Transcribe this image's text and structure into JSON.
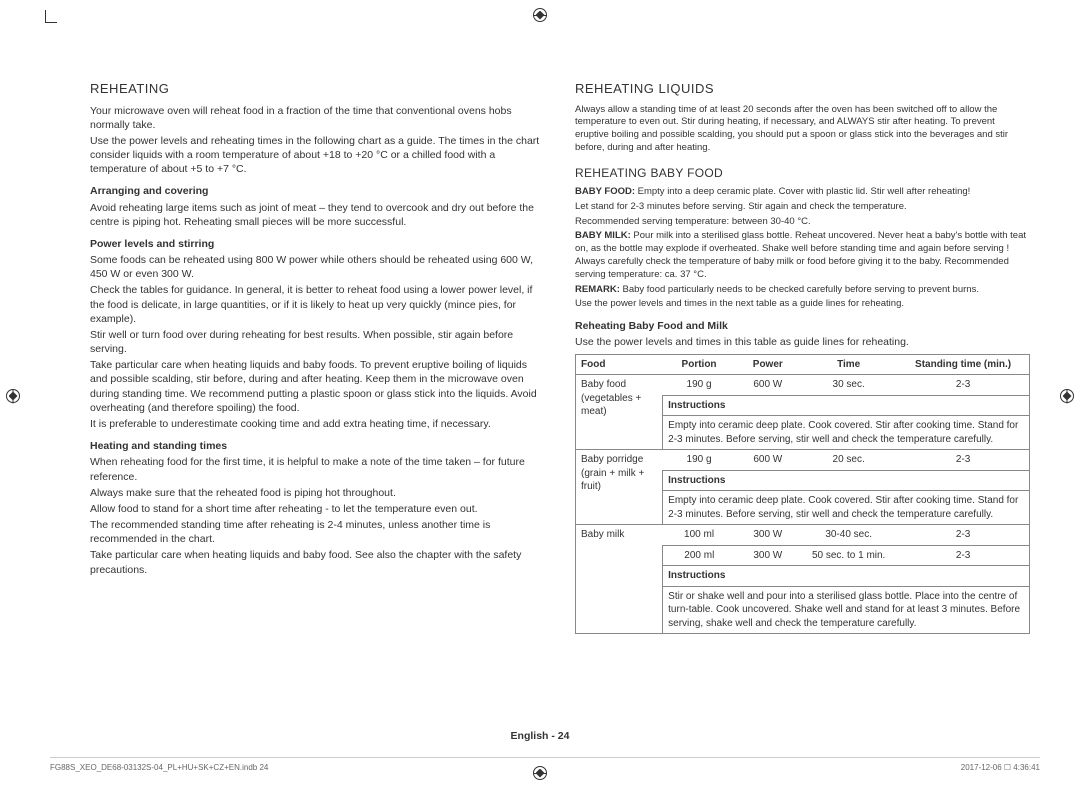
{
  "left": {
    "title": "Reheating",
    "intro1": "Your microwave oven will reheat food in a fraction of the time that conventional ovens hobs normally take.",
    "intro2": "Use the power levels and reheating times in the following chart as a guide. The times in the chart consider liquids with a room temperature of about +18 to +20 °C or a chilled food with a temperature of about +5 to +7 °C.",
    "s1h": "Arranging and covering",
    "s1p": "Avoid reheating large items such as joint of meat – they tend to overcook and dry out before the centre is piping hot. Reheating small pieces will be more successful.",
    "s2h": "Power levels and stirring",
    "s2p1": "Some foods can be reheated using 800 W power while others should be reheated using 600 W, 450 W or even 300 W.",
    "s2p2": "Check the tables for guidance. In general, it is better to reheat food using a lower power level, if the food is delicate, in large quantities, or if it is likely to heat up very quickly (mince pies, for example).",
    "s2p3": "Stir well or turn food over during reheating for best results. When possible, stir again before serving.",
    "s2p4": "Take particular care when heating liquids and baby foods. To prevent eruptive boiling of liquids and possible scalding, stir before, during and after heating. Keep them in the microwave oven during standing time. We recommend putting a plastic spoon or glass stick into the liquids. Avoid overheating (and therefore spoiling) the food.",
    "s2p5": "It is preferable to underestimate cooking time and add extra heating time, if necessary.",
    "s3h": "Heating and standing times",
    "s3p1": "When reheating food for the first time, it is helpful to make a note of the time taken – for future reference.",
    "s3p2": "Always make sure that the reheated food is piping hot throughout.",
    "s3p3": "Allow food to stand for a short time after reheating - to let the temperature even out.",
    "s3p4": "The recommended standing time after reheating is 2-4 minutes, unless another time is recommended in the chart.",
    "s3p5": "Take particular care when heating liquids and baby food. See also the chapter with the safety precautions."
  },
  "right": {
    "title1": "Reheating Liquids",
    "p1": "Always allow a standing time of at least 20 seconds after the oven has been switched off to allow the temperature to even out. Stir during heating, if necessary, and ALWAYS stir after heating. To prevent eruptive boiling and possible scalding, you should put a spoon or glass stick into the beverages and stir before, during and after heating.",
    "title2": "Reheating Baby Food",
    "bfLabel": "BABY FOOD:",
    "bf1": " Empty into a deep ceramic plate. Cover with plastic lid. Stir well after reheating!",
    "bf2": "Let stand for 2-3 minutes before serving. Stir again and check the temperature.",
    "bf3": "Recommended serving temperature: between 30-40 °C.",
    "bmLabel": "BABY MILK:",
    "bm1": " Pour milk into a sterilised glass bottle. Reheat uncovered. Never heat a baby's bottle with teat on, as the bottle may explode if overheated. Shake well before standing time and again before serving ! Always carefully check the temperature of baby milk or food before giving it to the baby. Recommended serving temperature: ca. 37 °C.",
    "remLabel": "REMARK:",
    "rem1": " Baby food particularly needs to be checked carefully before serving to prevent burns.",
    "rem2": "Use the power levels and times in the next table as a guide lines for reheating.",
    "tableTitle": "Reheating Baby Food and Milk",
    "tableIntro": "Use the power levels and times in this table as guide lines for reheating.",
    "headers": {
      "food": "Food",
      "portion": "Portion",
      "power": "Power",
      "time": "Time",
      "standing": "Standing time (min.)"
    },
    "instrLabel": "Instructions",
    "rows": [
      {
        "food": "Baby food (vegetables + meat)",
        "portion": "190 g",
        "power": "600 W",
        "time": "30 sec.",
        "standing": "2-3",
        "instr": "Empty into ceramic deep plate. Cook covered. Stir after cooking time. Stand for 2-3 minutes. Before serving, stir well and check the temperature carefully."
      },
      {
        "food": "Baby porridge (grain + milk + fruit)",
        "portion": "190 g",
        "power": "600 W",
        "time": "20 sec.",
        "standing": "2-3",
        "instr": "Empty into ceramic deep plate. Cook covered. Stir after cooking time. Stand for 2-3 minutes. Before serving, stir well and check the temperature carefully."
      },
      {
        "food": "Baby milk",
        "variants": [
          {
            "portion": "100 ml",
            "power": "300 W",
            "time": "30-40 sec.",
            "standing": "2-3"
          },
          {
            "portion": "200 ml",
            "power": "300 W",
            "time": "50 sec. to 1 min.",
            "standing": "2-3"
          }
        ],
        "instr": "Stir or shake well and pour into a sterilised glass bottle. Place into the centre of turn-table. Cook uncovered. Shake well and stand for at least 3 minutes. Before serving, shake well and check the temperature carefully."
      }
    ]
  },
  "footer": "English - 24",
  "footL": "FG88S_XEO_DE68-03132S-04_PL+HU+SK+CZ+EN.indb   24",
  "footR": "2017-12-06   ☐ 4:36:41"
}
